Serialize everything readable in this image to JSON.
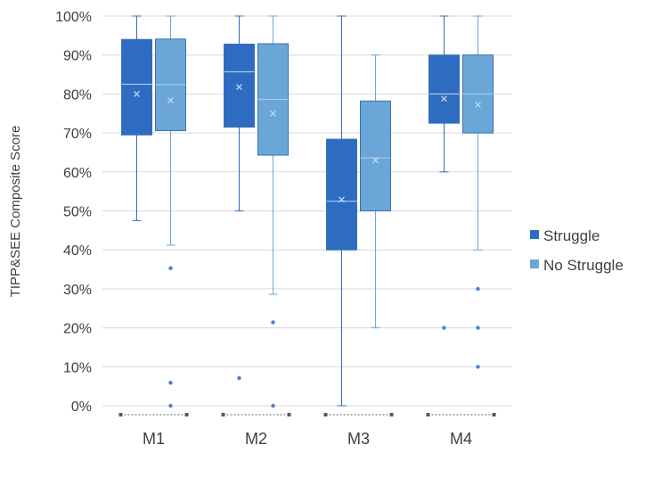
{
  "chart_data": {
    "type": "box",
    "title": "",
    "ylabel": "TIPP&SEE Composite Score",
    "xlabel": "",
    "ylim": [
      0,
      100
    ],
    "y_ticks": [
      0,
      10,
      20,
      30,
      40,
      50,
      60,
      70,
      80,
      90,
      100
    ],
    "y_tick_format": "{v}%",
    "grid": true,
    "legend_position": "right",
    "categories": [
      "M1",
      "M2",
      "M3",
      "M4"
    ],
    "series": [
      {
        "name": "Struggle",
        "color": "#2e6cc1",
        "boxes": [
          {
            "category": "M1",
            "min": 47.5,
            "q1": 69.5,
            "median": 82.5,
            "q3": 94,
            "max": 100,
            "mean": 80,
            "outliers": []
          },
          {
            "category": "M2",
            "min": 50,
            "q1": 71.5,
            "median": 85.7,
            "q3": 92.8,
            "max": 100,
            "mean": 81.8,
            "outliers": [
              7.1
            ]
          },
          {
            "category": "M3",
            "min": 0,
            "q1": 40,
            "median": 52.5,
            "q3": 68.4,
            "max": 100,
            "mean": 52.9,
            "outliers": []
          },
          {
            "category": "M4",
            "min": 60,
            "q1": 72.5,
            "median": 80,
            "q3": 90,
            "max": 100,
            "mean": 78.8,
            "outliers": [
              20
            ]
          }
        ]
      },
      {
        "name": "No Struggle",
        "color": "#6aa7d8",
        "boxes": [
          {
            "category": "M1",
            "min": 41.2,
            "q1": 70.6,
            "median": 82.4,
            "q3": 94.1,
            "max": 100,
            "mean": 78.4,
            "outliers": [
              35.3,
              5.9,
              0
            ]
          },
          {
            "category": "M2",
            "min": 28.6,
            "q1": 64.3,
            "median": 78.6,
            "q3": 92.9,
            "max": 100,
            "mean": 75,
            "outliers": [
              21.4,
              0
            ]
          },
          {
            "category": "M3",
            "min": 20,
            "q1": 50,
            "median": 63.6,
            "q3": 78.2,
            "max": 90,
            "mean": 63,
            "outliers": []
          },
          {
            "category": "M4",
            "min": 40,
            "q1": 70,
            "median": 80,
            "q3": 90,
            "max": 100,
            "mean": 77.2,
            "outliers": [
              30,
              20,
              10
            ]
          }
        ]
      }
    ]
  }
}
